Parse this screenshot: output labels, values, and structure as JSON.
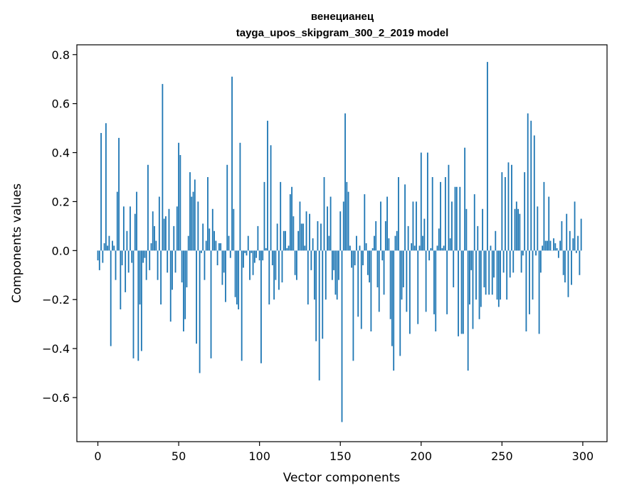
{
  "chart_data": {
    "type": "bar",
    "title": "венецианец",
    "subtitle": "tayga_upos_skipgram_300_2_2019 model",
    "xlabel": "Vector components",
    "ylabel": "Components values",
    "xlim": [
      -13,
      315
    ],
    "ylim": [
      -0.78,
      0.84
    ],
    "xticks": [
      0,
      50,
      100,
      150,
      200,
      250,
      300
    ],
    "xtick_labels": [
      "0",
      "50",
      "100",
      "150",
      "200",
      "250",
      "300"
    ],
    "yticks": [
      -0.6,
      -0.4,
      -0.2,
      0.0,
      0.2,
      0.4,
      0.6,
      0.8
    ],
    "ytick_labels": [
      "−0.6",
      "−0.4",
      "−0.2",
      "0.0",
      "0.2",
      "0.4",
      "0.6",
      "0.8"
    ],
    "bar_color": "#1f77b4",
    "grid": false,
    "x": [
      0,
      1,
      2,
      3,
      4,
      5,
      6,
      7,
      8,
      9,
      10,
      11,
      12,
      13,
      14,
      15,
      16,
      17,
      18,
      19,
      20,
      21,
      22,
      23,
      24,
      25,
      26,
      27,
      28,
      29,
      30,
      31,
      32,
      33,
      34,
      35,
      36,
      37,
      38,
      39,
      40,
      41,
      42,
      43,
      44,
      45,
      46,
      47,
      48,
      49,
      50,
      51,
      52,
      53,
      54,
      55,
      56,
      57,
      58,
      59,
      60,
      61,
      62,
      63,
      64,
      65,
      66,
      67,
      68,
      69,
      70,
      71,
      72,
      73,
      74,
      75,
      76,
      77,
      78,
      79,
      80,
      81,
      82,
      83,
      84,
      85,
      86,
      87,
      88,
      89,
      90,
      91,
      92,
      93,
      94,
      95,
      96,
      97,
      98,
      99,
      100,
      101,
      102,
      103,
      104,
      105,
      106,
      107,
      108,
      109,
      110,
      111,
      112,
      113,
      114,
      115,
      116,
      117,
      118,
      119,
      120,
      121,
      122,
      123,
      124,
      125,
      126,
      127,
      128,
      129,
      130,
      131,
      132,
      133,
      134,
      135,
      136,
      137,
      138,
      139,
      140,
      141,
      142,
      143,
      144,
      145,
      146,
      147,
      148,
      149,
      150,
      151,
      152,
      153,
      154,
      155,
      156,
      157,
      158,
      159,
      160,
      161,
      162,
      163,
      164,
      165,
      166,
      167,
      168,
      169,
      170,
      171,
      172,
      173,
      174,
      175,
      176,
      177,
      178,
      179,
      180,
      181,
      182,
      183,
      184,
      185,
      186,
      187,
      188,
      189,
      190,
      191,
      192,
      193,
      194,
      195,
      196,
      197,
      198,
      199,
      200,
      201,
      202,
      203,
      204,
      205,
      206,
      207,
      208,
      209,
      210,
      211,
      212,
      213,
      214,
      215,
      216,
      217,
      218,
      219,
      220,
      221,
      222,
      223,
      224,
      225,
      226,
      227,
      228,
      229,
      230,
      231,
      232,
      233,
      234,
      235,
      236,
      237,
      238,
      239,
      240,
      241,
      242,
      243,
      244,
      245,
      246,
      247,
      248,
      249,
      250,
      251,
      252,
      253,
      254,
      255,
      256,
      257,
      258,
      259,
      260,
      261,
      262,
      263,
      264,
      265,
      266,
      267,
      268,
      269,
      270,
      271,
      272,
      273,
      274,
      275,
      276,
      277,
      278,
      279,
      280,
      281,
      282,
      283,
      284,
      285,
      286,
      287,
      288,
      289,
      290,
      291,
      292,
      293,
      294,
      295,
      296,
      297,
      298,
      299
    ],
    "values": [
      -0.04,
      -0.08,
      0.48,
      -0.05,
      0.03,
      0.52,
      0.02,
      0.06,
      -0.39,
      0.04,
      0.02,
      -0.12,
      0.24,
      0.46,
      -0.24,
      -0.06,
      0.18,
      -0.17,
      0.08,
      -0.09,
      0.18,
      -0.05,
      -0.44,
      0.15,
      0.24,
      -0.45,
      -0.22,
      -0.41,
      -0.05,
      -0.03,
      -0.12,
      0.35,
      -0.08,
      0.03,
      0.16,
      0.1,
      0.04,
      -0.12,
      0.22,
      -0.22,
      0.68,
      0.13,
      0.14,
      -0.09,
      0.17,
      -0.29,
      -0.16,
      0.1,
      -0.09,
      0.18,
      0.44,
      0.39,
      -0.13,
      -0.33,
      -0.28,
      -0.15,
      0.06,
      0.32,
      0.22,
      0.24,
      0.29,
      -0.38,
      0.2,
      -0.5,
      -0.01,
      0.11,
      -0.12,
      0.04,
      0.3,
      0.09,
      -0.44,
      0.17,
      0.08,
      0.04,
      -0.06,
      0.03,
      0.03,
      -0.14,
      -0.09,
      -0.21,
      0.35,
      0.06,
      -0.03,
      0.71,
      0.17,
      -0.19,
      -0.22,
      -0.24,
      0.44,
      -0.45,
      -0.07,
      -0.01,
      -0.02,
      0.06,
      -0.12,
      -0.01,
      -0.1,
      -0.05,
      -0.03,
      0.1,
      -0.04,
      -0.46,
      -0.04,
      0.28,
      0.01,
      0.53,
      -0.22,
      0.43,
      -0.06,
      -0.2,
      -0.12,
      0.11,
      -0.16,
      0.28,
      -0.13,
      0.08,
      0.08,
      0.01,
      0.02,
      0.23,
      0.26,
      0.14,
      -0.1,
      -0.12,
      0.08,
      0.2,
      0.11,
      0.11,
      0.02,
      0.16,
      -0.22,
      0.15,
      -0.08,
      0.05,
      -0.2,
      -0.37,
      0.12,
      -0.53,
      0.11,
      -0.36,
      0.3,
      -0.2,
      0.18,
      0.06,
      0.22,
      -0.12,
      -0.08,
      -0.18,
      -0.2,
      -0.12,
      0.16,
      -0.7,
      0.2,
      0.56,
      0.28,
      0.24,
      0.02,
      -0.07,
      -0.45,
      -0.06,
      0.06,
      -0.27,
      0.02,
      -0.32,
      -0.06,
      0.23,
      0.03,
      -0.1,
      -0.13,
      -0.33,
      0.01,
      0.06,
      0.12,
      -0.15,
      -0.25,
      0.2,
      -0.04,
      -0.18,
      0.12,
      0.22,
      0.05,
      -0.28,
      -0.39,
      -0.49,
      0.06,
      0.08,
      0.3,
      -0.43,
      -0.2,
      -0.15,
      0.27,
      -0.25,
      0.1,
      -0.34,
      0.03,
      0.2,
      0.02,
      0.2,
      -0.3,
      0.02,
      0.4,
      0.06,
      0.13,
      -0.25,
      0.4,
      -0.04,
      0.01,
      0.3,
      -0.26,
      -0.33,
      0.02,
      0.09,
      0.28,
      0.01,
      0.02,
      0.3,
      -0.26,
      0.35,
      0.05,
      0.2,
      -0.15,
      0.26,
      0.26,
      -0.35,
      0.26,
      -0.34,
      -0.34,
      0.42,
      0.17,
      -0.49,
      -0.22,
      -0.08,
      -0.32,
      0.23,
      -0.2,
      0.1,
      -0.28,
      -0.23,
      0.17,
      -0.15,
      -0.18,
      0.77,
      -0.18,
      0.02,
      -0.18,
      -0.11,
      0.08,
      -0.2,
      -0.23,
      -0.2,
      0.32,
      -0.09,
      0.3,
      -0.2,
      0.36,
      -0.11,
      0.35,
      -0.09,
      0.17,
      0.2,
      0.17,
      0.15,
      -0.09,
      -0.02,
      0.32,
      -0.33,
      0.56,
      -0.26,
      0.53,
      -0.2,
      0.47,
      -0.02,
      0.18,
      -0.34,
      -0.09,
      0.02,
      0.28,
      0.04,
      0.04,
      0.22,
      0.04,
      0.0,
      0.05,
      0.03,
      0.01,
      -0.03,
      0.04,
      0.12,
      -0.1,
      -0.13,
      0.15,
      -0.19,
      0.08,
      -0.14,
      0.05,
      0.2,
      -0.01,
      0.06,
      -0.1,
      0.13
    ]
  }
}
